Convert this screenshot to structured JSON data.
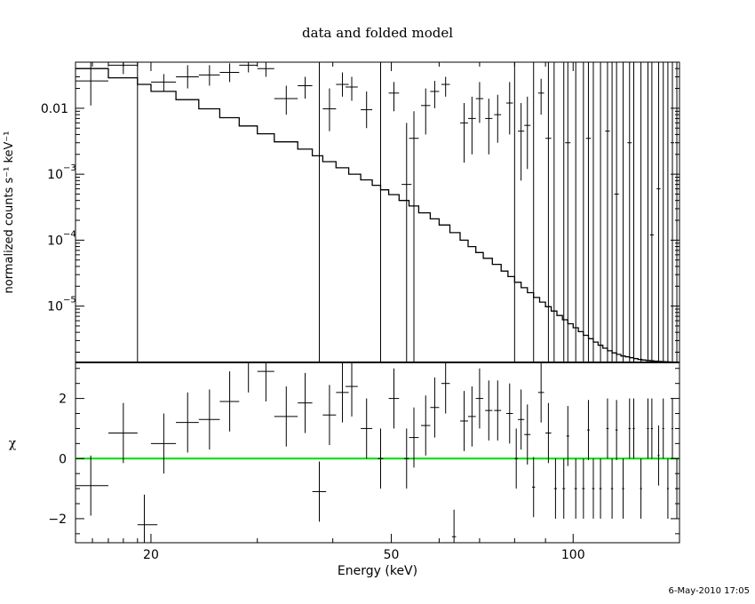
{
  "title": "data and folded model",
  "footer": "6-May-2010 17:05",
  "chart_data": [
    {
      "type": "line",
      "panel": "top",
      "title": "data and folded model",
      "xlabel": "",
      "ylabel": "normalized counts s⁻¹ keV⁻¹",
      "xscale": "log",
      "yscale": "log",
      "xlim": [
        15,
        150
      ],
      "ylim": [
        1.4e-06,
        0.05
      ],
      "yticks": [
        {
          "value": 1e-05,
          "base": "10",
          "exp": "−5"
        },
        {
          "value": 0.0001,
          "base": "10",
          "exp": "−4"
        },
        {
          "value": 0.001,
          "base": "10",
          "exp": "−3"
        },
        {
          "value": 0.01,
          "label": "0.01"
        }
      ],
      "data_series": {
        "name": "data",
        "points": [
          {
            "x": 15.9,
            "xlo": 15.0,
            "xhi": 17.0,
            "y": 0.026,
            "ylo": 0.011,
            "yhi": 0.05
          },
          {
            "x": 18.0,
            "xlo": 17.0,
            "xhi": 19.0,
            "y": 0.045,
            "ylo": 0.033,
            "yhi": 0.05
          },
          {
            "x": 19.5,
            "xlo": 19.0,
            "xhi": 21.0,
            "y": 0.0,
            "ylo": 0.0,
            "yhi": 0.0
          },
          {
            "x": 21.0,
            "xlo": 20.0,
            "xhi": 22.0,
            "y": 0.025,
            "ylo": 0.018,
            "yhi": 0.033
          },
          {
            "x": 23.0,
            "xlo": 22.0,
            "xhi": 24.0,
            "y": 0.03,
            "ylo": 0.02,
            "yhi": 0.045
          },
          {
            "x": 25.0,
            "xlo": 24.0,
            "xhi": 26.0,
            "y": 0.032,
            "ylo": 0.022,
            "yhi": 0.045
          },
          {
            "x": 27.0,
            "xlo": 26.0,
            "xhi": 28.0,
            "y": 0.035,
            "ylo": 0.025,
            "yhi": 0.048
          },
          {
            "x": 29.0,
            "xlo": 28.0,
            "xhi": 30.0,
            "y": 0.045,
            "ylo": 0.035,
            "yhi": 0.05
          },
          {
            "x": 31.0,
            "xlo": 30.0,
            "xhi": 32.0,
            "y": 0.04,
            "ylo": 0.03,
            "yhi": 0.05
          },
          {
            "x": 33.5,
            "xlo": 32.0,
            "xhi": 35.0,
            "y": 0.014,
            "ylo": 0.008,
            "yhi": 0.022
          },
          {
            "x": 36.0,
            "xlo": 35.0,
            "xhi": 37.0,
            "y": 0.022,
            "ylo": 0.014,
            "yhi": 0.03
          },
          {
            "x": 39.5,
            "xlo": 38.5,
            "xhi": 40.5,
            "y": 0.0098,
            "ylo": 0.0045,
            "yhi": 0.02
          },
          {
            "x": 41.5,
            "xlo": 40.5,
            "xhi": 42.5,
            "y": 0.023,
            "ylo": 0.015,
            "yhi": 0.035
          },
          {
            "x": 43.0,
            "xlo": 42.0,
            "xhi": 44.0,
            "y": 0.021,
            "ylo": 0.013,
            "yhi": 0.03
          },
          {
            "x": 45.5,
            "xlo": 44.5,
            "xhi": 46.5,
            "y": 0.0095,
            "ylo": 0.005,
            "yhi": 0.018
          },
          {
            "x": 50.5,
            "xlo": 49.5,
            "xhi": 51.5,
            "y": 0.017,
            "ylo": 0.009,
            "yhi": 0.025
          },
          {
            "x": 53.0,
            "xlo": 52.0,
            "xhi": 54.0,
            "y": 0.0007,
            "ylo": 1.4e-06,
            "yhi": 0.006
          },
          {
            "x": 54.5,
            "xlo": 53.5,
            "xhi": 55.5,
            "y": 0.0035,
            "ylo": 1.4e-06,
            "yhi": 0.009
          },
          {
            "x": 57.0,
            "xlo": 56.0,
            "xhi": 58.0,
            "y": 0.011,
            "ylo": 0.004,
            "yhi": 0.02
          },
          {
            "x": 59.0,
            "xlo": 58.0,
            "xhi": 60.0,
            "y": 0.018,
            "ylo": 0.01,
            "yhi": 0.026
          },
          {
            "x": 61.5,
            "xlo": 60.5,
            "xhi": 62.5,
            "y": 0.023,
            "ylo": 0.015,
            "yhi": 0.03
          },
          {
            "x": 66.0,
            "xlo": 65.0,
            "xhi": 67.0,
            "y": 0.006,
            "ylo": 0.0015,
            "yhi": 0.012
          },
          {
            "x": 68.0,
            "xlo": 67.0,
            "xhi": 69.0,
            "y": 0.007,
            "ylo": 0.002,
            "yhi": 0.015
          },
          {
            "x": 70.0,
            "xlo": 69.0,
            "xhi": 71.0,
            "y": 0.014,
            "ylo": 0.006,
            "yhi": 0.025
          },
          {
            "x": 72.5,
            "xlo": 71.5,
            "xhi": 73.5,
            "y": 0.007,
            "ylo": 0.002,
            "yhi": 0.014
          },
          {
            "x": 75.0,
            "xlo": 74.0,
            "xhi": 76.0,
            "y": 0.008,
            "ylo": 0.003,
            "yhi": 0.016
          },
          {
            "x": 78.5,
            "xlo": 77.5,
            "xhi": 79.5,
            "y": 0.012,
            "ylo": 0.004,
            "yhi": 0.025
          },
          {
            "x": 82.0,
            "xlo": 81.0,
            "xhi": 83.0,
            "y": 0.0045,
            "ylo": 0.0008,
            "yhi": 0.012
          },
          {
            "x": 84.0,
            "xlo": 83.0,
            "xhi": 85.0,
            "y": 0.0055,
            "ylo": 0.0012,
            "yhi": 0.015
          },
          {
            "x": 88.5,
            "xlo": 87.5,
            "xhi": 89.5,
            "y": 0.017,
            "ylo": 0.008,
            "yhi": 0.028
          },
          {
            "x": 91.0,
            "xlo": 90.0,
            "xhi": 92.0,
            "y": 0.0035,
            "ylo": 1.4e-06,
            "yhi": 0.05
          },
          {
            "x": 98.0,
            "xlo": 97.0,
            "xhi": 99.0,
            "y": 0.003,
            "ylo": 1.4e-06,
            "yhi": 0.05
          },
          {
            "x": 106.0,
            "xlo": 105.0,
            "xhi": 107.0,
            "y": 0.0035,
            "ylo": 1.4e-06,
            "yhi": 0.05
          },
          {
            "x": 114.0,
            "xlo": 113.0,
            "xhi": 115.0,
            "y": 0.0045,
            "ylo": 1.4e-06,
            "yhi": 0.05
          },
          {
            "x": 118.0,
            "xlo": 117.0,
            "xhi": 119.0,
            "y": 0.0005,
            "ylo": 1.4e-06,
            "yhi": 0.05
          },
          {
            "x": 124.0,
            "xlo": 123.0,
            "xhi": 125.0,
            "y": 0.003,
            "ylo": 1.4e-06,
            "yhi": 0.05
          },
          {
            "x": 135.0,
            "xlo": 134.0,
            "xhi": 136.0,
            "y": 0.00012,
            "ylo": 1.4e-06,
            "yhi": 0.05
          },
          {
            "x": 138.5,
            "xlo": 137.5,
            "xhi": 139.5,
            "y": 0.0006,
            "ylo": 1.4e-06,
            "yhi": 0.05
          },
          {
            "x": 146.0,
            "xlo": 145.0,
            "xhi": 147.0,
            "y": 0.003,
            "ylo": 1.4e-06,
            "yhi": 0.05
          }
        ],
        "upper_limit_lines_x": [
          19.0,
          38.0,
          48.0,
          80.0,
          86.0,
          93.0,
          96.5,
          101.0,
          104.0,
          108.0,
          111.0,
          116.0,
          121.0,
          126.0,
          129.5,
          133.0,
          141.0,
          143.5,
          148.5
        ]
      },
      "model_series": {
        "name": "model",
        "edges": [
          15.0,
          17.0,
          19.0,
          20.0,
          22.0,
          24.0,
          26.0,
          28.0,
          30.0,
          32.0,
          35.0,
          37.0,
          38.5,
          40.5,
          42.5,
          44.5,
          46.5,
          48.0,
          49.5,
          51.5,
          53.5,
          55.5,
          58.0,
          60.0,
          62.5,
          65.0,
          67.0,
          69.0,
          71.0,
          73.5,
          76.0,
          78.0,
          80.0,
          82.0,
          84.0,
          86.0,
          88.0,
          90.0,
          92.0,
          94.0,
          96.0,
          98.0,
          100.0,
          102.0,
          104.0,
          106.0,
          108.0,
          110.0,
          112.0,
          114.0,
          116.0,
          118.0,
          120.0,
          122.0,
          124.0,
          126.0,
          128.0,
          130.0,
          132.0,
          134.0,
          136.0,
          138.0,
          140.0,
          142.0,
          144.0,
          146.0,
          148.0,
          150.0
        ],
        "values": [
          0.04,
          0.029,
          0.023,
          0.018,
          0.0135,
          0.0098,
          0.0072,
          0.0054,
          0.0041,
          0.0031,
          0.0024,
          0.0019,
          0.00155,
          0.00125,
          0.001,
          0.00082,
          0.00068,
          0.00058,
          0.00049,
          0.0004,
          0.00033,
          0.00026,
          0.00021,
          0.00017,
          0.00013,
          0.0001,
          8e-05,
          6.5e-05,
          5.3e-05,
          4.3e-05,
          3.4e-05,
          2.8e-05,
          2.3e-05,
          1.9e-05,
          1.6e-05,
          1.35e-05,
          1.15e-05,
          9.8e-06,
          8.4e-06,
          7.2e-06,
          6.2e-06,
          5.4e-06,
          4.7e-06,
          4.1e-06,
          3.6e-06,
          3.2e-06,
          2.85e-06,
          2.55e-06,
          2.3e-06,
          2.1e-06,
          1.95e-06,
          1.85e-06,
          1.75e-06,
          1.7e-06,
          1.65e-06,
          1.6e-06,
          1.55e-06,
          1.52e-06,
          1.5e-06,
          1.48e-06,
          1.46e-06,
          1.45e-06,
          1.44e-06,
          1.43e-06,
          1.42e-06,
          1.41e-06,
          1.4e-06
        ]
      }
    },
    {
      "type": "scatter",
      "panel": "bottom",
      "xlabel": "Energy (keV)",
      "ylabel": "χ",
      "xscale": "log",
      "xlim": [
        15,
        150
      ],
      "ylim": [
        -2.8,
        3.2
      ],
      "xticks": [
        20,
        50,
        100
      ],
      "yticks": [
        -2,
        0,
        2
      ],
      "zero_line": {
        "y": 0,
        "color": "#00dd00"
      },
      "points": [
        {
          "x": 15.9,
          "xlo": 15.0,
          "xhi": 17.0,
          "y": -0.9,
          "ylo": -1.9,
          "yhi": 0.1
        },
        {
          "x": 18.0,
          "xlo": 17.0,
          "xhi": 19.0,
          "y": 0.85,
          "ylo": -0.15,
          "yhi": 1.85
        },
        {
          "x": 19.5,
          "xlo": 19.0,
          "xhi": 20.5,
          "y": -2.2,
          "ylo": -2.8,
          "yhi": -1.2
        },
        {
          "x": 21.0,
          "xlo": 20.0,
          "xhi": 22.0,
          "y": 0.5,
          "ylo": -0.5,
          "yhi": 1.5
        },
        {
          "x": 23.0,
          "xlo": 22.0,
          "xhi": 24.0,
          "y": 1.2,
          "ylo": 0.2,
          "yhi": 2.2
        },
        {
          "x": 25.0,
          "xlo": 24.0,
          "xhi": 26.0,
          "y": 1.3,
          "ylo": 0.3,
          "yhi": 2.3
        },
        {
          "x": 27.0,
          "xlo": 26.0,
          "xhi": 28.0,
          "y": 1.9,
          "ylo": 0.9,
          "yhi": 2.9
        },
        {
          "x": 29.0,
          "xlo": 28.0,
          "xhi": 30.0,
          "y": 3.2,
          "ylo": 2.2,
          "yhi": 3.2
        },
        {
          "x": 31.0,
          "xlo": 30.0,
          "xhi": 32.0,
          "y": 2.9,
          "ylo": 1.9,
          "yhi": 3.2
        },
        {
          "x": 33.5,
          "xlo": 32.0,
          "xhi": 35.0,
          "y": 1.4,
          "ylo": 0.4,
          "yhi": 2.4
        },
        {
          "x": 36.0,
          "xlo": 35.0,
          "xhi": 37.0,
          "y": 1.85,
          "ylo": 0.85,
          "yhi": 2.85
        },
        {
          "x": 38.0,
          "xlo": 37.0,
          "xhi": 39.0,
          "y": -1.1,
          "ylo": -2.1,
          "yhi": -0.1
        },
        {
          "x": 39.5,
          "xlo": 38.5,
          "xhi": 40.5,
          "y": 1.45,
          "ylo": 0.45,
          "yhi": 2.45
        },
        {
          "x": 41.5,
          "xlo": 40.5,
          "xhi": 42.5,
          "y": 2.2,
          "ylo": 1.2,
          "yhi": 3.2
        },
        {
          "x": 43.0,
          "xlo": 42.0,
          "xhi": 44.0,
          "y": 2.4,
          "ylo": 1.4,
          "yhi": 3.2
        },
        {
          "x": 45.5,
          "xlo": 44.5,
          "xhi": 46.5,
          "y": 1.0,
          "ylo": 0.0,
          "yhi": 2.0
        },
        {
          "x": 48.0,
          "xlo": 47.5,
          "xhi": 48.5,
          "y": 0.0,
          "ylo": -1.0,
          "yhi": 1.0
        },
        {
          "x": 50.5,
          "xlo": 49.5,
          "xhi": 51.5,
          "y": 2.0,
          "ylo": 1.0,
          "yhi": 3.0
        },
        {
          "x": 53.0,
          "xlo": 52.5,
          "xhi": 53.5,
          "y": 0.0,
          "ylo": -1.0,
          "yhi": 1.0
        },
        {
          "x": 54.5,
          "xlo": 53.5,
          "xhi": 55.5,
          "y": 0.7,
          "ylo": -0.3,
          "yhi": 1.7
        },
        {
          "x": 57.0,
          "xlo": 56.0,
          "xhi": 58.0,
          "y": 1.1,
          "ylo": 0.1,
          "yhi": 2.1
        },
        {
          "x": 59.0,
          "xlo": 58.0,
          "xhi": 60.0,
          "y": 1.7,
          "ylo": 0.7,
          "yhi": 2.7
        },
        {
          "x": 61.5,
          "xlo": 60.5,
          "xhi": 62.5,
          "y": 2.5,
          "ylo": 1.5,
          "yhi": 3.2
        },
        {
          "x": 63.5,
          "xlo": 63.0,
          "xhi": 64.0,
          "y": -2.6,
          "ylo": -2.8,
          "yhi": -1.7
        },
        {
          "x": 66.0,
          "xlo": 65.0,
          "xhi": 67.0,
          "y": 1.25,
          "ylo": 0.25,
          "yhi": 2.25
        },
        {
          "x": 68.0,
          "xlo": 67.0,
          "xhi": 69.0,
          "y": 1.4,
          "ylo": 0.4,
          "yhi": 2.4
        },
        {
          "x": 70.0,
          "xlo": 69.0,
          "xhi": 71.0,
          "y": 2.0,
          "ylo": 1.0,
          "yhi": 3.0
        },
        {
          "x": 72.5,
          "xlo": 71.5,
          "xhi": 73.5,
          "y": 1.6,
          "ylo": 0.6,
          "yhi": 2.6
        },
        {
          "x": 75.0,
          "xlo": 74.0,
          "xhi": 76.0,
          "y": 1.6,
          "ylo": 0.6,
          "yhi": 2.6
        },
        {
          "x": 78.5,
          "xlo": 77.5,
          "xhi": 79.5,
          "y": 1.5,
          "ylo": 0.5,
          "yhi": 2.5
        },
        {
          "x": 80.5,
          "xlo": 80.0,
          "xhi": 81.0,
          "y": 0.0,
          "ylo": -1.0,
          "yhi": 1.0
        },
        {
          "x": 82.0,
          "xlo": 81.0,
          "xhi": 83.0,
          "y": 1.3,
          "ylo": 0.3,
          "yhi": 2.3
        },
        {
          "x": 84.0,
          "xlo": 83.0,
          "xhi": 85.0,
          "y": 0.8,
          "ylo": -0.2,
          "yhi": 1.8
        },
        {
          "x": 86.0,
          "xlo": 85.5,
          "xhi": 86.5,
          "y": -0.95,
          "ylo": -1.95,
          "yhi": 0.05
        },
        {
          "x": 88.5,
          "xlo": 87.5,
          "xhi": 89.5,
          "y": 2.2,
          "ylo": 1.2,
          "yhi": 3.2
        },
        {
          "x": 91.0,
          "xlo": 90.0,
          "xhi": 92.0,
          "y": 0.85,
          "ylo": -0.15,
          "yhi": 1.85
        },
        {
          "x": 93.5,
          "xlo": 93.0,
          "xhi": 94.0,
          "y": -1.0,
          "ylo": -2.0,
          "yhi": 0.0
        },
        {
          "x": 96.5,
          "xlo": 96.0,
          "xhi": 97.0,
          "y": -1.0,
          "ylo": -2.0,
          "yhi": 0.0
        },
        {
          "x": 98.0,
          "xlo": 97.5,
          "xhi": 98.5,
          "y": 0.75,
          "ylo": -0.25,
          "yhi": 1.75
        },
        {
          "x": 101.0,
          "xlo": 100.5,
          "xhi": 101.5,
          "y": -1.0,
          "ylo": -2.0,
          "yhi": 0.0
        },
        {
          "x": 104.0,
          "xlo": 103.5,
          "xhi": 104.5,
          "y": -1.0,
          "ylo": -2.0,
          "yhi": 0.0
        },
        {
          "x": 106.0,
          "xlo": 105.5,
          "xhi": 106.5,
          "y": 0.95,
          "ylo": -0.05,
          "yhi": 1.95
        },
        {
          "x": 108.0,
          "xlo": 107.5,
          "xhi": 108.5,
          "y": -1.0,
          "ylo": -2.0,
          "yhi": 0.0
        },
        {
          "x": 111.0,
          "xlo": 110.5,
          "xhi": 111.5,
          "y": -1.0,
          "ylo": -2.0,
          "yhi": 0.0
        },
        {
          "x": 114.0,
          "xlo": 113.5,
          "xhi": 114.5,
          "y": 1.0,
          "ylo": 0.0,
          "yhi": 2.0
        },
        {
          "x": 116.0,
          "xlo": 115.5,
          "xhi": 116.5,
          "y": -1.0,
          "ylo": -2.0,
          "yhi": 0.0
        },
        {
          "x": 118.0,
          "xlo": 117.5,
          "xhi": 118.5,
          "y": 0.95,
          "ylo": -0.05,
          "yhi": 1.95
        },
        {
          "x": 121.0,
          "xlo": 120.5,
          "xhi": 121.5,
          "y": -1.0,
          "ylo": -2.0,
          "yhi": 0.0
        },
        {
          "x": 124.0,
          "xlo": 123.5,
          "xhi": 124.5,
          "y": 1.0,
          "ylo": 0.0,
          "yhi": 2.0
        },
        {
          "x": 126.0,
          "xlo": 125.5,
          "xhi": 126.5,
          "y": 1.0,
          "ylo": 0.0,
          "yhi": 2.0
        },
        {
          "x": 129.5,
          "xlo": 129.0,
          "xhi": 130.0,
          "y": -1.0,
          "ylo": -2.0,
          "yhi": 0.0
        },
        {
          "x": 133.0,
          "xlo": 132.5,
          "xhi": 133.5,
          "y": 1.0,
          "ylo": 0.0,
          "yhi": 2.0
        },
        {
          "x": 135.0,
          "xlo": 134.5,
          "xhi": 135.5,
          "y": 1.0,
          "ylo": 0.0,
          "yhi": 2.0
        },
        {
          "x": 138.5,
          "xlo": 138.0,
          "xhi": 139.0,
          "y": 0.1,
          "ylo": -0.9,
          "yhi": 1.1
        },
        {
          "x": 141.0,
          "xlo": 140.5,
          "xhi": 141.5,
          "y": 1.0,
          "ylo": 0.0,
          "yhi": 2.0
        },
        {
          "x": 143.5,
          "xlo": 143.0,
          "xhi": 144.0,
          "y": -1.0,
          "ylo": -2.0,
          "yhi": 0.0
        },
        {
          "x": 146.0,
          "xlo": 145.5,
          "xhi": 146.5,
          "y": 1.0,
          "ylo": 0.0,
          "yhi": 2.0
        },
        {
          "x": 148.5,
          "xlo": 148.0,
          "xhi": 149.0,
          "y": -1.0,
          "ylo": -2.0,
          "yhi": 0.0
        }
      ]
    }
  ]
}
